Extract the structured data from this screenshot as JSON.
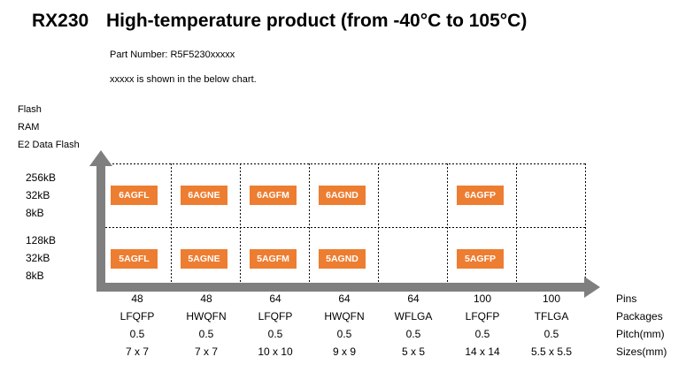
{
  "header": {
    "code": "RX230",
    "title": "High-temperature product (from -40°C to 105°C)",
    "part_number": "Part Number: R5F5230xxxxx",
    "note": "xxxxx is shown in the below chart."
  },
  "y_axis": {
    "labels": [
      "Flash",
      "RAM",
      "E2 Data Flash"
    ]
  },
  "rows": [
    {
      "memory": [
        "256kB",
        "32kB",
        "8kB"
      ],
      "chips": [
        "6AGFL",
        "6AGNE",
        "6AGFM",
        "6AGND",
        "",
        "6AGFP",
        ""
      ]
    },
    {
      "memory": [
        "128kB",
        "32kB",
        "8kB"
      ],
      "chips": [
        "5AGFL",
        "5AGNE",
        "5AGFM",
        "5AGND",
        "",
        "5AGFP",
        ""
      ]
    }
  ],
  "columns": [
    {
      "pins": "48",
      "package": "LFQFP",
      "pitch": "0.5",
      "size": "7 x 7"
    },
    {
      "pins": "48",
      "package": "HWQFN",
      "pitch": "0.5",
      "size": "7 x 7"
    },
    {
      "pins": "64",
      "package": "LFQFP",
      "pitch": "0.5",
      "size": "10 x 10"
    },
    {
      "pins": "64",
      "package": "HWQFN",
      "pitch": "0.5",
      "size": "9 x 9"
    },
    {
      "pins": "64",
      "package": "WFLGA",
      "pitch": "0.5",
      "size": "5 x 5"
    },
    {
      "pins": "100",
      "package": "LFQFP",
      "pitch": "0.5",
      "size": "14 x 14"
    },
    {
      "pins": "100",
      "package": "TFLGA",
      "pitch": "0.5",
      "size": "5.5 x 5.5"
    }
  ],
  "row_labels": [
    "Pins",
    "Packages",
    "Pitch(mm)",
    "Sizes(mm)"
  ],
  "colors": {
    "accent": "#ed7d31",
    "axis": "#7f7f7f"
  }
}
